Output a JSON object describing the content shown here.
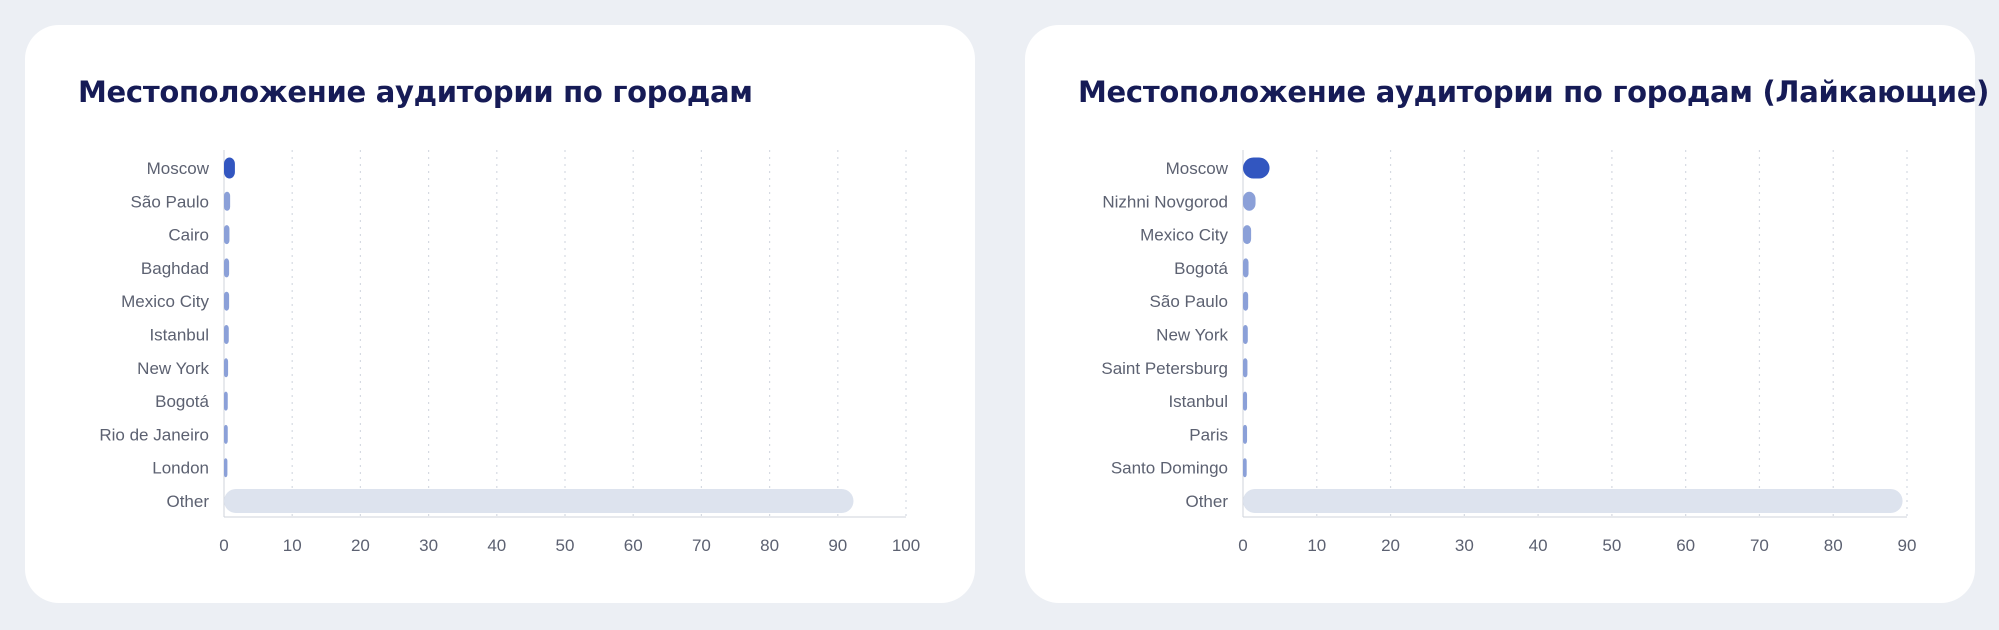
{
  "charts": [
    {
      "title": "Местоположение аудитории по городам",
      "chart_data": {
        "type": "bar",
        "orientation": "horizontal",
        "title": "Местоположение аудитории по городам",
        "categories": [
          "Moscow",
          "São Paulo",
          "Cairo",
          "Baghdad",
          "Mexico City",
          "Istanbul",
          "New York",
          "Bogotá",
          "Rio de Janeiro",
          "London",
          "Other"
        ],
        "values": [
          1.6,
          0.9,
          0.8,
          0.75,
          0.75,
          0.7,
          0.6,
          0.55,
          0.55,
          0.5,
          92.3
        ],
        "xlim": [
          0,
          100
        ],
        "xticks": [
          0,
          10,
          20,
          30,
          40,
          50,
          60,
          70,
          80,
          90,
          100
        ],
        "xlabel": "",
        "ylabel": "",
        "grid": "vertical dotted",
        "colors": {
          "top": "#3256c0",
          "bars": "#8ba0d8",
          "other": "#dde3ee"
        }
      }
    },
    {
      "title": "Местоположение аудитории по городам (Лайкающие)",
      "chart_data": {
        "type": "bar",
        "orientation": "horizontal",
        "title": "Местоположение аудитории по городам (Лайкающие)",
        "categories": [
          "Moscow",
          "Nizhni Novgorod",
          "Mexico City",
          "Bogotá",
          "São Paulo",
          "New York",
          "Saint Petersburg",
          "Istanbul",
          "Paris",
          "Santo Domingo",
          "Other"
        ],
        "values": [
          3.6,
          1.7,
          1.1,
          0.75,
          0.7,
          0.65,
          0.6,
          0.55,
          0.55,
          0.5,
          89.4
        ],
        "xlim": [
          0,
          90
        ],
        "xticks": [
          0,
          10,
          20,
          30,
          40,
          50,
          60,
          70,
          80,
          90
        ],
        "xlabel": "",
        "ylabel": "",
        "grid": "vertical dotted",
        "colors": {
          "top": "#3256c0",
          "bars": "#8ba0d8",
          "other": "#dde3ee"
        }
      }
    }
  ]
}
